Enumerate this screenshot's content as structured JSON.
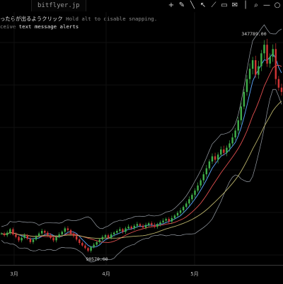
{
  "tabs": {
    "left_label": "",
    "active_label": "bitflyer.jp"
  },
  "toolbar": {
    "icons": [
      "plus-icon",
      "pencil-icon",
      "line-icon",
      "arrow-icon",
      "measure-icon",
      "ruler-icon",
      "comment-icon",
      "vertical-line-icon",
      "search-icon",
      "dash-icon",
      "circle-icon"
    ]
  },
  "overlay": {
    "hint_main": "ったらが出るようクリック",
    "hint_secondary": "Hold alt to disable snapping.",
    "alert_prefix": "ceive",
    "alert_text": "text message alerts"
  },
  "chart_data": {
    "type": "candlestick",
    "title": "",
    "x_ticks": [
      "3月",
      "4月",
      "5月"
    ],
    "price_labels": {
      "high": "347789.00",
      "low": "98570.00"
    },
    "series": [
      {
        "name": "",
        "color": "#5ea8ff"
      },
      {
        "name": "",
        "color": "#e35050"
      },
      {
        "name": "",
        "color": "#b9b26a"
      }
    ],
    "candles": [
      120000,
      118000,
      121000,
      125000,
      119000,
      116000,
      112000,
      115000,
      118000,
      114000,
      110000,
      113000,
      117000,
      120000,
      123000,
      121000,
      118000,
      115000,
      112000,
      116000,
      119000,
      122000,
      126000,
      124000,
      120000,
      117000,
      113000,
      109000,
      106000,
      103000,
      100000,
      104000,
      107000,
      110000,
      113000,
      116000,
      118000,
      115000,
      119000,
      121000,
      123000,
      125000,
      122000,
      126000,
      128000,
      126000,
      129000,
      131000,
      129000,
      127000,
      130000,
      132000,
      130000,
      128000,
      131000,
      133000,
      135000,
      137000,
      134000,
      138000,
      141000,
      144000,
      147000,
      151000,
      155000,
      160000,
      165000,
      170000,
      176000,
      182000,
      189000,
      196000,
      204000,
      210000,
      206000,
      212000,
      218000,
      214000,
      220000,
      225000,
      232000,
      240000,
      252000,
      268000,
      285000,
      300000,
      312000,
      322000,
      305000,
      315000,
      330000,
      340000,
      318000,
      326000,
      335000,
      300000,
      290000,
      285000
    ]
  }
}
